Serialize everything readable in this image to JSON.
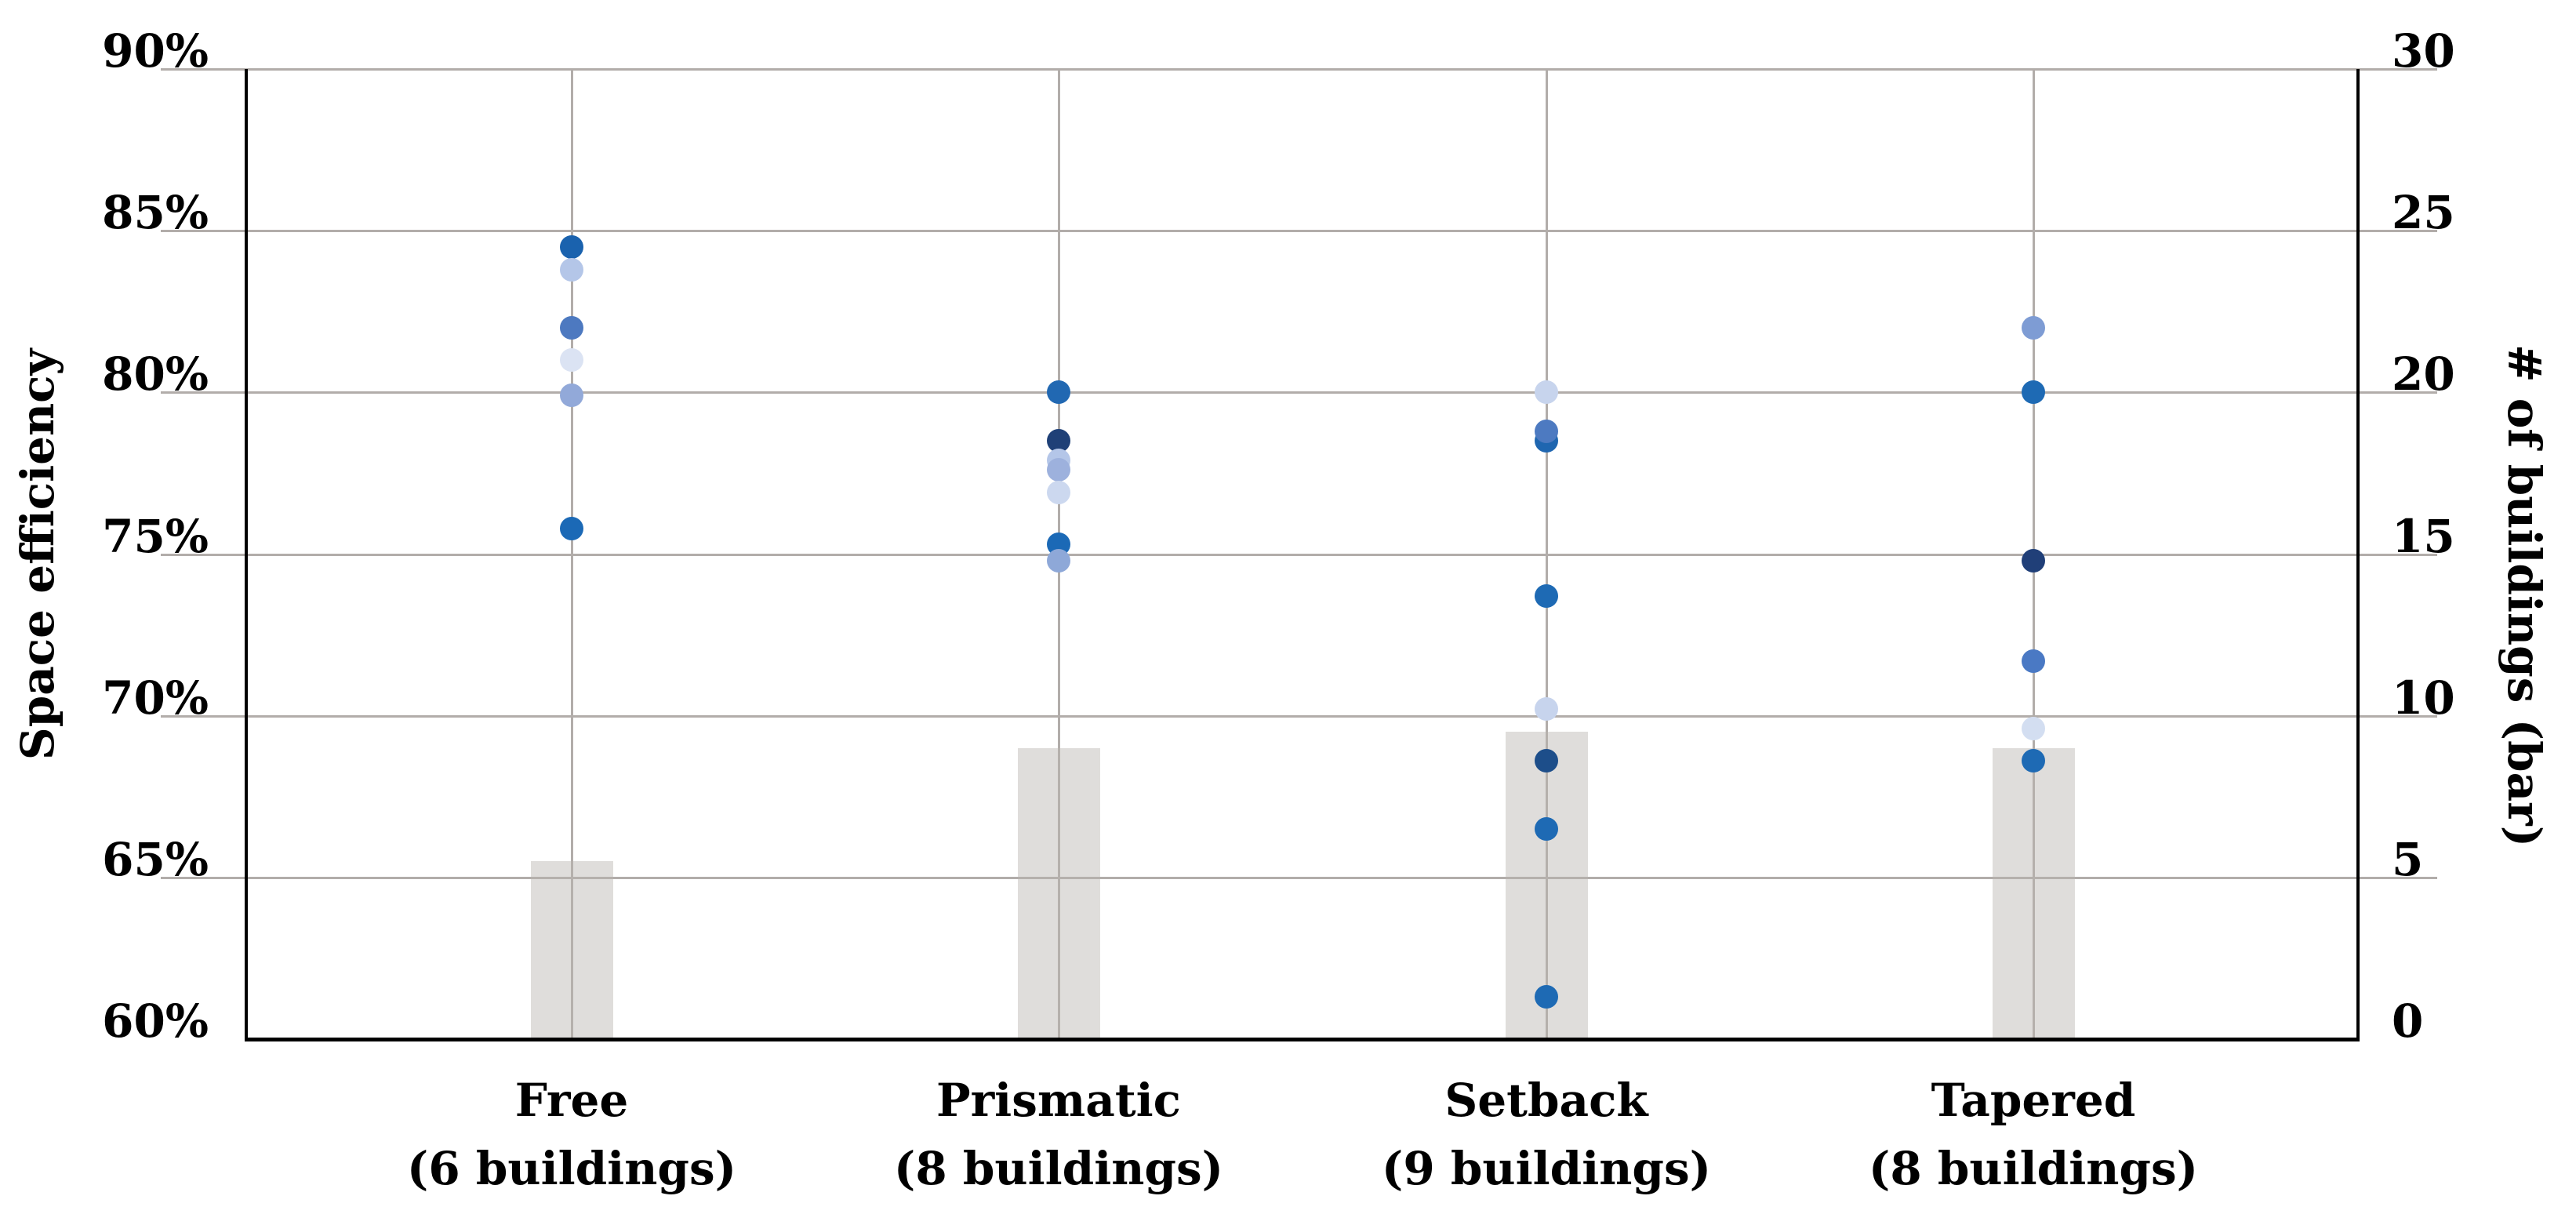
{
  "chart_data": {
    "type": "scatter+bar",
    "description": "Space efficiency scatter points per building-form category with gray bars showing number of buildings on secondary axis",
    "grid": true,
    "colors": {
      "gridline": "#b2adaa",
      "axis_line": "#000000",
      "bar_fill": "rgba(185,180,176,0.45)",
      "background": "#ffffff"
    },
    "left_axis": {
      "title": "Space efficiency",
      "min": 60,
      "max": 90,
      "ticks": [
        {
          "label": "90%",
          "value": 90
        },
        {
          "label": "85%",
          "value": 85
        },
        {
          "label": "80%",
          "value": 80
        },
        {
          "label": "75%",
          "value": 75
        },
        {
          "label": "70%",
          "value": 70
        },
        {
          "label": "65%",
          "value": 65
        },
        {
          "label": "60%",
          "value": 60
        }
      ]
    },
    "right_axis": {
      "title": "# of buildings (bar)",
      "min": 0,
      "max": 30,
      "ticks": [
        {
          "label": "30",
          "value": 30
        },
        {
          "label": "25",
          "value": 25
        },
        {
          "label": "20",
          "value": 20
        },
        {
          "label": "15",
          "value": 15
        },
        {
          "label": "10",
          "value": 10
        },
        {
          "label": "5",
          "value": 5
        },
        {
          "label": "0",
          "value": 0
        }
      ]
    },
    "categories": [
      {
        "name": "Free",
        "label_line1": "Free",
        "label_line2": "(6 buildings)",
        "building_count": 6,
        "bar_value": 5.5,
        "points": [
          {
            "value": 84.5,
            "color": "#1a62ae"
          },
          {
            "value": 83.8,
            "color": "#b4c6e8"
          },
          {
            "value": 82.0,
            "color": "#4d79c0"
          },
          {
            "value": 81.0,
            "color": "#dbe3f3"
          },
          {
            "value": 79.9,
            "color": "#92a9d9"
          },
          {
            "value": 75.8,
            "color": "#1b69b6"
          }
        ]
      },
      {
        "name": "Prismatic",
        "label_line1": "Prismatic",
        "label_line2": "(8 buildings)",
        "building_count": 8,
        "bar_value": 9,
        "points": [
          {
            "value": 80.0,
            "color": "#2168b2"
          },
          {
            "value": 78.5,
            "color": "#1f4077"
          },
          {
            "value": 77.9,
            "color": "#b4c6e8"
          },
          {
            "value": 77.6,
            "color": "#9db1dd"
          },
          {
            "value": 76.9,
            "color": "#ccd8ef"
          },
          {
            "value": 75.3,
            "color": "#1b69b6"
          },
          {
            "value": 74.8,
            "color": "#8ea8d8"
          }
        ]
      },
      {
        "name": "Setback",
        "label_line1": "Setback",
        "label_line2": "(9 buildings)",
        "building_count": 9,
        "bar_value": 9.5,
        "points": [
          {
            "value": 80.0,
            "color": "#c7d4ed"
          },
          {
            "value": 78.5,
            "color": "#1f66b0"
          },
          {
            "value": 78.8,
            "color": "#4d7ac1"
          },
          {
            "value": 73.7,
            "color": "#1e6ab4"
          },
          {
            "value": 70.2,
            "color": "#c7d4ed"
          },
          {
            "value": 68.6,
            "color": "#1d4e8a"
          },
          {
            "value": 66.5,
            "color": "#1e6ab4"
          },
          {
            "value": 61.3,
            "color": "#1e6ab4"
          }
        ]
      },
      {
        "name": "Tapered",
        "label_line1": "Tapered",
        "label_line2": "(8 buildings)",
        "building_count": 8,
        "bar_value": 9,
        "points": [
          {
            "value": 82.0,
            "color": "#7e9cd4"
          },
          {
            "value": 80.0,
            "color": "#1e6ab4"
          },
          {
            "value": 74.8,
            "color": "#203f78"
          },
          {
            "value": 71.7,
            "color": "#4a79c4"
          },
          {
            "value": 69.6,
            "color": "#d3def1"
          },
          {
            "value": 68.6,
            "color": "#1e6ab4"
          }
        ]
      }
    ]
  }
}
